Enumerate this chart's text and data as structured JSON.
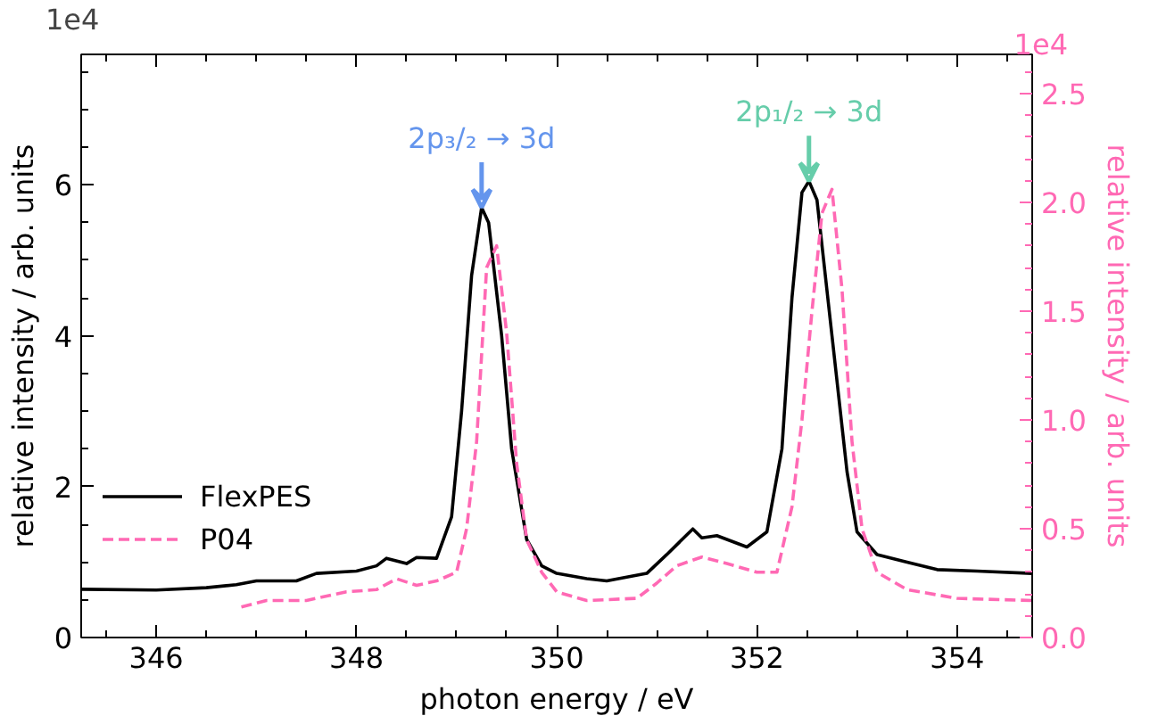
{
  "chart_data": {
    "type": "line",
    "xlabel": "photon energy / eV",
    "ylabel": "relative intensity / arb. units",
    "y2label": "relative intensity / arb. units",
    "x": [
      345.25,
      346,
      346.5,
      346.8,
      347.0,
      347.4,
      347.6,
      348.0,
      348.2,
      348.3,
      348.5,
      348.6,
      348.8,
      348.95,
      349.05,
      349.15,
      349.25,
      349.32,
      349.45,
      349.55,
      349.7,
      349.85,
      350.0,
      350.3,
      350.5,
      350.9,
      351.1,
      351.36,
      351.45,
      351.6,
      351.9,
      352.1,
      352.25,
      352.35,
      352.45,
      352.52,
      352.6,
      352.75,
      352.9,
      353.0,
      353.2,
      353.5,
      353.8,
      354.2,
      354.75
    ],
    "series": [
      {
        "name": "FlexPES",
        "color": "#000000",
        "line_style": "solid",
        "values": [
          0.64,
          0.63,
          0.66,
          0.7,
          0.75,
          0.75,
          0.85,
          0.88,
          0.95,
          1.05,
          0.98,
          1.06,
          1.05,
          1.6,
          3.0,
          4.8,
          5.7,
          5.5,
          4.0,
          2.5,
          1.3,
          0.95,
          0.85,
          0.78,
          0.75,
          0.85,
          1.1,
          1.44,
          1.32,
          1.35,
          1.2,
          1.4,
          2.5,
          4.5,
          5.9,
          6.05,
          5.8,
          4.0,
          2.2,
          1.4,
          1.1,
          1.0,
          0.9,
          0.88,
          0.85
        ]
      },
      {
        "name": "P04",
        "color": "#ff69b4",
        "line_style": "dashed",
        "axis": "y2",
        "x": [
          346.85,
          347.1,
          347.5,
          347.9,
          348.2,
          348.4,
          348.6,
          348.8,
          349.0,
          349.1,
          349.2,
          349.3,
          349.4,
          349.5,
          349.6,
          349.7,
          349.85,
          350.0,
          350.3,
          350.8,
          351.0,
          351.2,
          351.45,
          351.7,
          352.0,
          352.2,
          352.35,
          352.45,
          352.55,
          352.65,
          352.75,
          352.85,
          352.95,
          353.05,
          353.2,
          353.5,
          354.0,
          354.75
        ],
        "values": [
          0.14,
          0.17,
          0.17,
          0.21,
          0.22,
          0.27,
          0.24,
          0.26,
          0.3,
          0.5,
          0.9,
          1.7,
          1.8,
          1.4,
          0.8,
          0.45,
          0.3,
          0.21,
          0.17,
          0.18,
          0.25,
          0.33,
          0.37,
          0.34,
          0.3,
          0.3,
          0.6,
          1.0,
          1.5,
          1.95,
          2.06,
          1.6,
          0.9,
          0.5,
          0.3,
          0.22,
          0.18,
          0.17
        ]
      }
    ],
    "xlim": [
      345.25,
      354.75
    ],
    "xticks": [
      346,
      348,
      350,
      352,
      354
    ],
    "ylim": [
      0,
      7.73
    ],
    "yticks": [
      0,
      2,
      4,
      6
    ],
    "y2lim": [
      0,
      2.68
    ],
    "y2ticks": [
      {
        "value": 0,
        "label": "0.0"
      },
      {
        "value": 0.5,
        "label": "0.5"
      },
      {
        "value": 1.0,
        "label": "1.0"
      },
      {
        "value": 1.5,
        "label": "1.5"
      },
      {
        "value": 2.0,
        "label": "2.0"
      },
      {
        "value": 2.5,
        "label": "2.5"
      }
    ],
    "annotations": [
      {
        "text": "2p₃/₂ → 3d",
        "x": 349.25,
        "y": 5.7
      },
      {
        "text": "2p₁/₂ → 3d",
        "x": 352.52,
        "y": 6.05
      },
      "1e4",
      "1e4"
    ],
    "legend": "bottom left",
    "grid": false
  }
}
